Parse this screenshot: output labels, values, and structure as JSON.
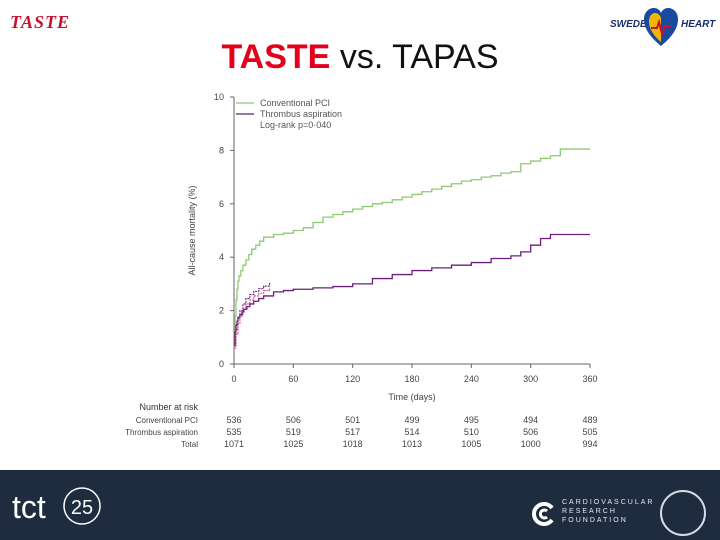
{
  "header": {
    "logo_text": "TASTE",
    "title_emphasis": "TASTE",
    "title_rest": " vs. TAPAS",
    "right_logo_left": "SWEDE",
    "right_logo_right": "HEART"
  },
  "chart_data": {
    "type": "line",
    "xlabel": "Time (days)",
    "ylabel": "All-cause mortality (%)",
    "xlim": [
      0,
      360
    ],
    "ylim": [
      0,
      10
    ],
    "x_ticks": [
      "0",
      "60",
      "120",
      "180",
      "240",
      "300",
      "360"
    ],
    "y_ticks": [
      "0",
      "2",
      "4",
      "6",
      "8",
      "10"
    ],
    "legend_placement": "top-left",
    "series": [
      {
        "name": "Conventional PCI",
        "color": "#8fca6f",
        "x": [
          0,
          1,
          2,
          3,
          4,
          5,
          7,
          9,
          12,
          15,
          18,
          22,
          26,
          30,
          40,
          50,
          60,
          70,
          80,
          90,
          100,
          110,
          120,
          130,
          140,
          150,
          160,
          170,
          180,
          190,
          200,
          210,
          220,
          230,
          240,
          250,
          260,
          270,
          280,
          290,
          300,
          310,
          320,
          330,
          360
        ],
        "y": [
          0.7,
          1.8,
          2.4,
          2.8,
          3.1,
          3.3,
          3.5,
          3.7,
          3.9,
          4.1,
          4.3,
          4.45,
          4.6,
          4.75,
          4.85,
          4.9,
          5.0,
          5.1,
          5.3,
          5.5,
          5.6,
          5.7,
          5.8,
          5.9,
          6.0,
          6.05,
          6.15,
          6.25,
          6.35,
          6.45,
          6.55,
          6.65,
          6.75,
          6.85,
          6.9,
          7.0,
          7.05,
          7.15,
          7.2,
          7.5,
          7.6,
          7.7,
          7.8,
          8.05,
          8.05
        ]
      },
      {
        "name": "Thrombus aspiration",
        "color": "#6b1f7a",
        "x": [
          0,
          1,
          2,
          3,
          4,
          6,
          8,
          10,
          13,
          16,
          20,
          25,
          30,
          40,
          50,
          60,
          80,
          100,
          120,
          140,
          160,
          180,
          200,
          220,
          240,
          260,
          280,
          290,
          300,
          310,
          320,
          360
        ],
        "y": [
          0.7,
          1.2,
          1.45,
          1.6,
          1.75,
          1.85,
          1.95,
          2.05,
          2.15,
          2.25,
          2.35,
          2.45,
          2.55,
          2.7,
          2.75,
          2.8,
          2.85,
          2.9,
          3.0,
          3.2,
          3.35,
          3.5,
          3.6,
          3.7,
          3.8,
          3.95,
          4.05,
          4.2,
          4.45,
          4.7,
          4.85,
          4.85
        ]
      }
    ],
    "overlay_series": [
      {
        "color": "#6b1f7a",
        "x": [
          0,
          2,
          4,
          6,
          9,
          12,
          16,
          20,
          25,
          30,
          36
        ],
        "y": [
          0.7,
          1.3,
          1.7,
          2.0,
          2.25,
          2.45,
          2.6,
          2.72,
          2.82,
          2.92,
          3.05
        ]
      },
      {
        "color": "#d64a8c",
        "x": [
          0,
          2,
          4,
          6,
          9,
          12,
          16,
          20,
          25,
          30,
          36
        ],
        "y": [
          0.6,
          1.1,
          1.5,
          1.8,
          2.05,
          2.25,
          2.4,
          2.55,
          2.65,
          2.75,
          2.85
        ]
      }
    ],
    "legend": [
      "Conventional PCI",
      "Thrombus aspiration"
    ],
    "annotation": "Log-rank p=0·040",
    "risk_table": {
      "title": "Number at risk",
      "columns": [
        "0",
        "60",
        "120",
        "180",
        "240",
        "300",
        "360"
      ],
      "rows": [
        {
          "label": "Conventional PCI",
          "values": [
            "536",
            "506",
            "501",
            "499",
            "495",
            "494",
            "489"
          ]
        },
        {
          "label": "Thrombus aspiration",
          "values": [
            "535",
            "519",
            "517",
            "514",
            "510",
            "506",
            "505"
          ]
        },
        {
          "label": "Total",
          "values": [
            "1071",
            "1025",
            "1018",
            "1013",
            "1005",
            "1000",
            "994"
          ]
        }
      ]
    }
  },
  "footer": {
    "tct_text": "tct",
    "tct_number": "25",
    "crf_line1": "CARDIOVASCULAR",
    "crf_line2": "RESEARCH",
    "crf_line3": "FOUNDATION"
  }
}
